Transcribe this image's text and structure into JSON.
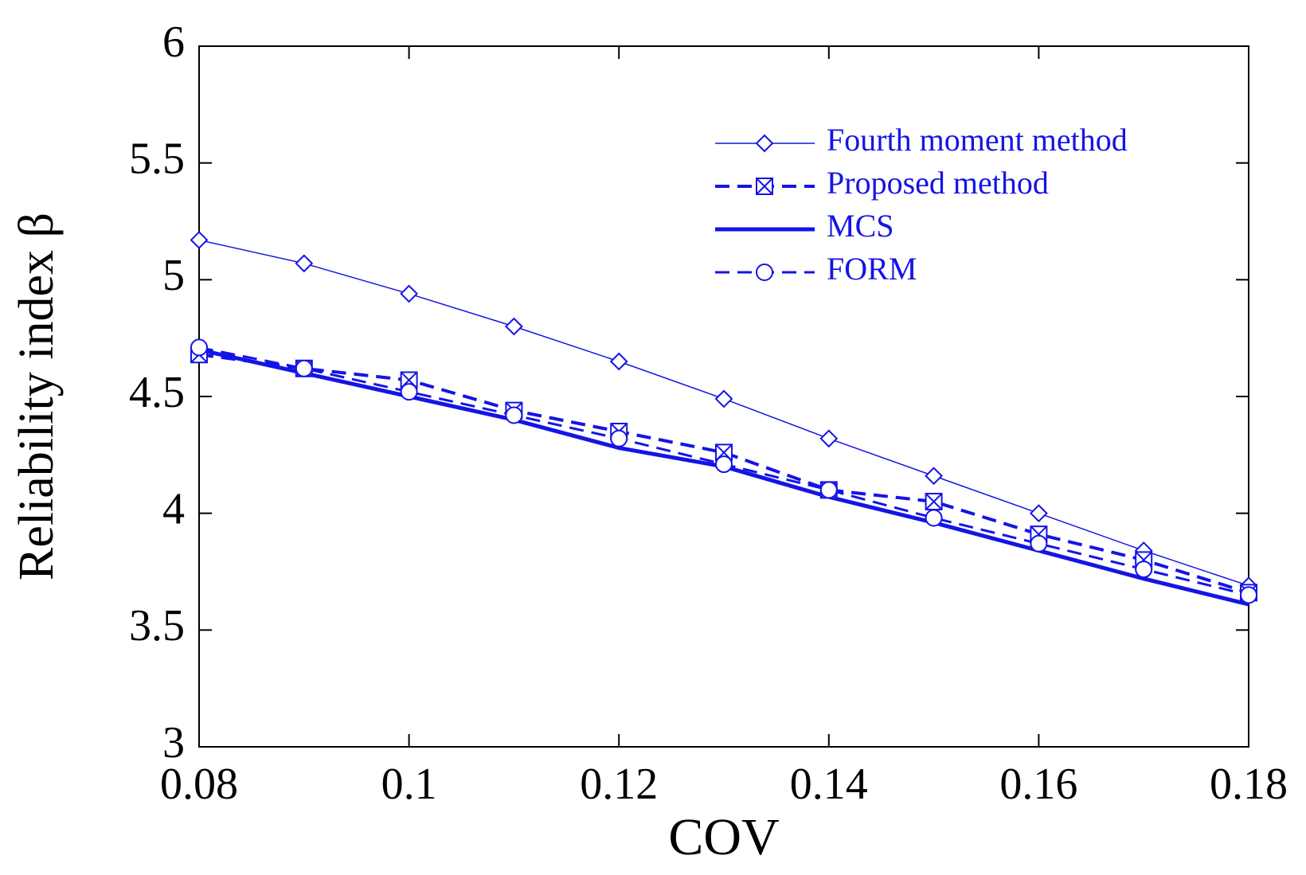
{
  "chart_data": {
    "type": "line",
    "x_label": "COV",
    "y_label": "Reliability index β",
    "x": [
      0.08,
      0.09,
      0.1,
      0.11,
      0.12,
      0.13,
      0.14,
      0.15,
      0.16,
      0.17,
      0.18
    ],
    "xlim": [
      0.08,
      0.18
    ],
    "xticks": [
      {
        "value": 0.08,
        "label": "0.08"
      },
      0.1,
      0.12,
      0.14,
      0.16,
      0.18
    ],
    "ylim": [
      3,
      6
    ],
    "yticks": [
      3,
      3.5,
      4,
      4.5,
      5,
      5.5,
      6
    ],
    "grid": false,
    "legend": "upper right",
    "series": [
      {
        "name": "Fourth moment method",
        "color": "#1414e6",
        "line_style": "solid",
        "line_width": 1.5,
        "marker": "diamond",
        "values": [
          5.17,
          5.07,
          4.94,
          4.8,
          4.65,
          4.49,
          4.32,
          4.16,
          4.0,
          3.84,
          3.69
        ]
      },
      {
        "name": "Proposed method",
        "color": "#1414e6",
        "line_style": "dashed",
        "line_width": 4,
        "marker": "crossed-square",
        "values": [
          4.68,
          4.62,
          4.57,
          4.44,
          4.35,
          4.26,
          4.1,
          4.05,
          3.91,
          3.8,
          3.66
        ]
      },
      {
        "name": "MCS",
        "color": "#1414e6",
        "line_style": "solid",
        "line_width": 5,
        "marker": "none",
        "values": [
          4.7,
          4.6,
          4.5,
          4.4,
          4.28,
          4.2,
          4.07,
          3.96,
          3.84,
          3.72,
          3.61
        ]
      },
      {
        "name": "FORM",
        "color": "#1414e6",
        "line_style": "dashed",
        "line_width": 3,
        "marker": "circle",
        "values": [
          4.71,
          4.62,
          4.52,
          4.42,
          4.32,
          4.21,
          4.1,
          3.98,
          3.87,
          3.76,
          3.65
        ]
      }
    ]
  }
}
